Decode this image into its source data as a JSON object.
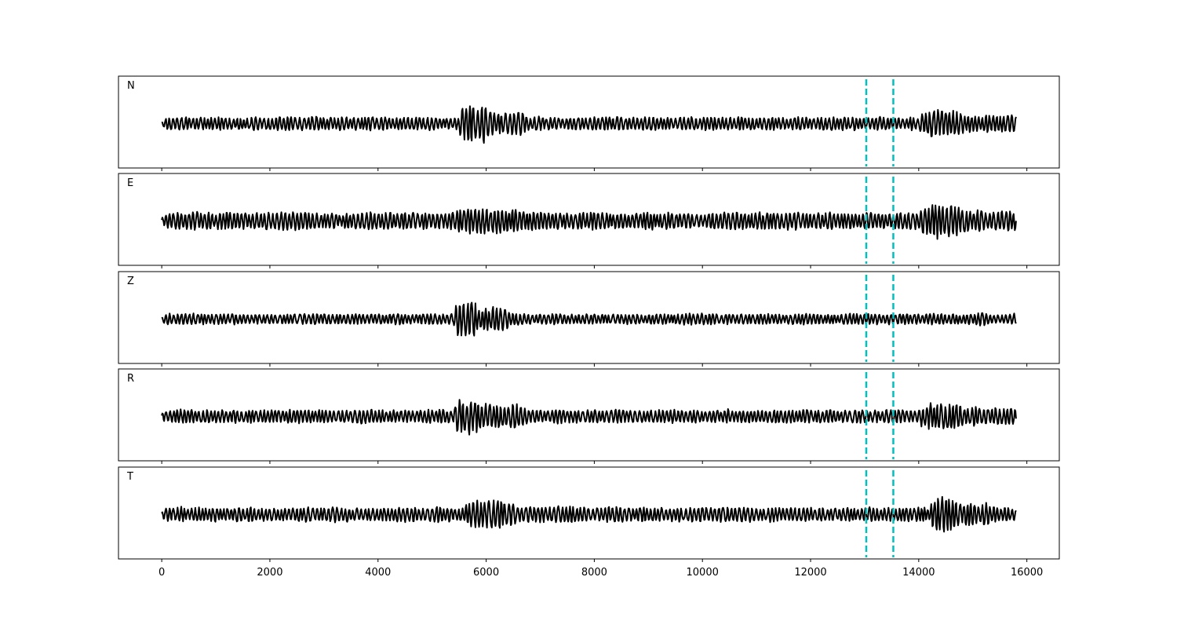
{
  "chart_data": {
    "type": "line",
    "description_free": true,
    "panels": [
      {
        "label": "N",
        "amplitude": 1.0,
        "bursts": [
          [
            5500,
            6700,
            3.2
          ],
          [
            14000,
            15800,
            2.2
          ]
        ]
      },
      {
        "label": "E",
        "amplitude": 1.3,
        "bursts": [
          [
            5400,
            8800,
            1.6
          ],
          [
            14000,
            15800,
            2.0
          ]
        ]
      },
      {
        "label": "Z",
        "amplitude": 0.8,
        "bursts": [
          [
            5400,
            6400,
            3.6
          ],
          [
            15000,
            15800,
            1.5
          ]
        ]
      },
      {
        "label": "R",
        "amplitude": 1.0,
        "bursts": [
          [
            5400,
            6700,
            3.0
          ],
          [
            14000,
            15800,
            2.2
          ]
        ]
      },
      {
        "label": "T",
        "amplitude": 1.1,
        "bursts": [
          [
            5600,
            7800,
            2.0
          ],
          [
            14200,
            15300,
            2.6
          ]
        ]
      }
    ],
    "x_range": [
      -800,
      16600
    ],
    "x_start": 0,
    "x_end": 15800,
    "x_ticks": [
      "0",
      "2000",
      "4000",
      "6000",
      "8000",
      "10000",
      "12000",
      "14000",
      "16000"
    ],
    "x_tick_values": [
      0,
      2000,
      4000,
      6000,
      8000,
      10000,
      12000,
      14000,
      16000
    ],
    "markers": [
      13030,
      13530
    ],
    "marker_color": "#00BFBF",
    "trace_color": "#000000"
  }
}
